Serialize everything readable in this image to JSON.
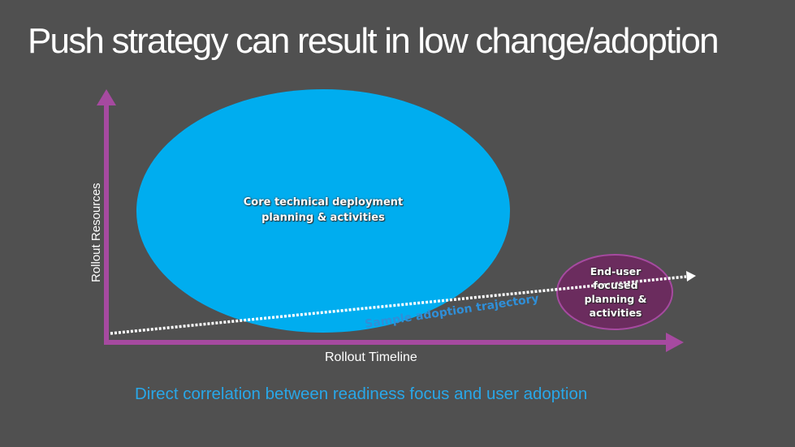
{
  "slide": {
    "title": "Push strategy can result in low change/adoption",
    "caption": "Direct correlation between readiness focus and user adoption"
  },
  "axes": {
    "y_label": "Rollout Resources",
    "x_label": "Rollout Timeline",
    "color": "#a64aa0"
  },
  "bubbles": {
    "core": {
      "label": "Core technical deployment planning & activities",
      "color": "#00adef"
    },
    "end_user": {
      "label": "End-user focused planning & activities",
      "color": "#6b2c5e"
    }
  },
  "trajectory": {
    "label": "Sample adoption trajectory"
  }
}
